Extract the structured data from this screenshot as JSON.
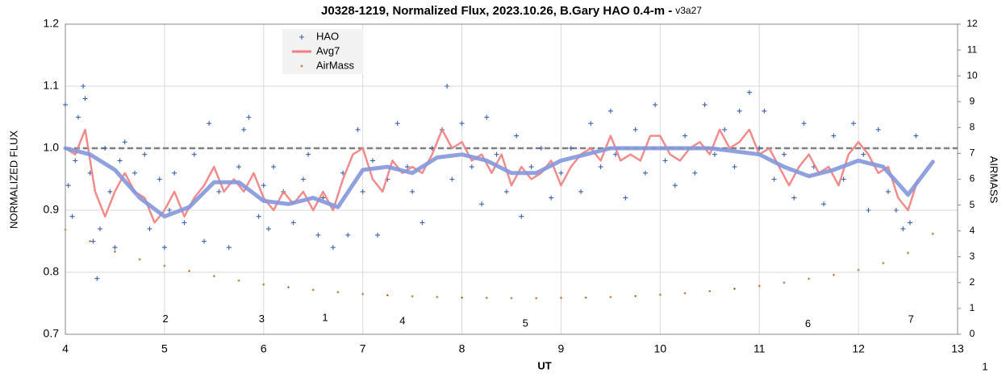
{
  "chart_data": {
    "type": "scatter",
    "title": "J0328-1219, Normalized Flux, 2023.10.26, B.Gary HAO 0.4-m -",
    "version": "v3a27",
    "xlabel": "UT",
    "ylabel": "NORMALIZED FLUX",
    "y2label": "AIRMASS",
    "page_label": "1",
    "xlim": [
      4,
      13
    ],
    "xticks": [
      4,
      5,
      6,
      7,
      8,
      9,
      10,
      11,
      12,
      13
    ],
    "ylim": [
      0.7,
      1.2
    ],
    "yticks": [
      0.7,
      0.8,
      0.9,
      {
        "value": 1,
        "label": "1.0"
      },
      1.1,
      1.2
    ],
    "y2lim": [
      0,
      12
    ],
    "y2ticks": [
      0,
      1,
      2,
      3,
      4,
      5,
      6,
      7,
      8,
      9,
      10,
      11,
      12
    ],
    "grid": true,
    "legend": "top-left",
    "reference_line": {
      "value": 1,
      "color": "#808080",
      "style": "dashed"
    },
    "trend": {
      "color": "#8497dd",
      "x": [
        4.0,
        4.25,
        4.5,
        4.75,
        5.0,
        5.25,
        5.5,
        5.75,
        6.0,
        6.25,
        6.5,
        6.75,
        7.0,
        7.25,
        7.5,
        7.75,
        8.0,
        8.25,
        8.5,
        8.75,
        9.0,
        9.25,
        9.5,
        10.0,
        10.5,
        10.75,
        11.0,
        11.25,
        11.5,
        11.75,
        12.0,
        12.25,
        12.5,
        12.75
      ],
      "values": [
        1.0,
        0.99,
        0.965,
        0.92,
        0.89,
        0.905,
        0.945,
        0.945,
        0.915,
        0.91,
        0.92,
        0.905,
        0.965,
        0.97,
        0.96,
        0.985,
        0.99,
        0.98,
        0.96,
        0.96,
        0.98,
        0.99,
        1.0,
        1.0,
        1.0,
        0.995,
        0.99,
        0.97,
        0.955,
        0.965,
        0.98,
        0.97,
        0.925,
        0.978
      ]
    },
    "annotations": [
      {
        "text": "2",
        "x": 5.01,
        "y": 0.724
      },
      {
        "text": "3",
        "x": 5.98,
        "y": 0.724
      },
      {
        "text": "1",
        "x": 6.62,
        "y": 0.726
      },
      {
        "text": "4",
        "x": 7.4,
        "y": 0.721
      },
      {
        "text": "5",
        "x": 8.64,
        "y": 0.717
      },
      {
        "text": "6",
        "x": 11.49,
        "y": 0.716
      },
      {
        "text": "7",
        "x": 12.53,
        "y": 0.723
      }
    ],
    "series": [
      {
        "name": "HAO",
        "color": "#4060b0",
        "marker": "plus",
        "x": [
          4.0,
          4.03,
          4.07,
          4.1,
          4.13,
          4.18,
          4.2,
          4.25,
          4.28,
          4.32,
          4.35,
          4.4,
          4.45,
          4.5,
          4.55,
          4.6,
          4.7,
          4.8,
          4.85,
          4.95,
          5.0,
          5.05,
          5.1,
          5.2,
          5.3,
          5.4,
          5.45,
          5.55,
          5.65,
          5.75,
          5.8,
          5.85,
          5.95,
          6.0,
          6.05,
          6.1,
          6.2,
          6.3,
          6.4,
          6.45,
          6.55,
          6.6,
          6.7,
          6.8,
          6.85,
          6.95,
          7.0,
          7.1,
          7.15,
          7.25,
          7.35,
          7.45,
          7.5,
          7.6,
          7.7,
          7.8,
          7.85,
          7.9,
          8.0,
          8.1,
          8.2,
          8.25,
          8.35,
          8.45,
          8.55,
          8.6,
          8.7,
          8.8,
          8.9,
          9.0,
          9.1,
          9.2,
          9.3,
          9.4,
          9.5,
          9.55,
          9.65,
          9.75,
          9.85,
          9.95,
          10.05,
          10.15,
          10.25,
          10.35,
          10.45,
          10.55,
          10.65,
          10.75,
          10.8,
          10.9,
          11.0,
          11.05,
          11.15,
          11.25,
          11.35,
          11.45,
          11.55,
          11.65,
          11.75,
          11.85,
          11.95,
          12.05,
          12.1,
          12.2,
          12.3,
          12.38,
          12.45,
          12.52,
          12.58
        ],
        "values": [
          1.07,
          0.94,
          0.89,
          0.98,
          1.05,
          1.1,
          1.08,
          0.96,
          0.85,
          0.79,
          0.87,
          1.0,
          0.93,
          0.84,
          0.98,
          1.01,
          0.96,
          0.99,
          0.87,
          0.95,
          0.84,
          0.9,
          0.96,
          0.88,
          0.99,
          0.85,
          1.04,
          0.93,
          0.84,
          0.97,
          1.03,
          1.05,
          0.89,
          0.94,
          0.87,
          0.97,
          0.93,
          0.88,
          0.95,
          0.99,
          0.86,
          0.92,
          0.84,
          0.96,
          0.86,
          1.03,
          0.93,
          0.98,
          0.86,
          0.95,
          1.04,
          0.97,
          0.93,
          0.88,
          1.0,
          1.03,
          1.1,
          0.95,
          1.04,
          0.97,
          0.91,
          1.05,
          0.99,
          0.93,
          1.02,
          0.89,
          0.97,
          1.0,
          0.92,
          0.96,
          1.0,
          0.93,
          1.04,
          0.97,
          1.06,
          0.99,
          0.92,
          1.03,
          0.96,
          1.07,
          0.98,
          0.94,
          1.02,
          0.96,
          1.07,
          0.99,
          1.03,
          0.97,
          1.06,
          1.09,
          1.0,
          1.06,
          0.95,
          0.99,
          0.92,
          1.04,
          0.97,
          0.91,
          1.02,
          0.95,
          1.04,
          0.99,
          0.9,
          1.03,
          0.93,
          0.9,
          0.87,
          0.88,
          1.02
        ]
      },
      {
        "name": "Avg7",
        "color": "#f08080",
        "marker": "line",
        "x": [
          4.0,
          4.1,
          4.2,
          4.3,
          4.4,
          4.5,
          4.6,
          4.7,
          4.8,
          4.9,
          5.0,
          5.1,
          5.2,
          5.3,
          5.4,
          5.5,
          5.6,
          5.7,
          5.8,
          5.9,
          6.0,
          6.1,
          6.2,
          6.3,
          6.4,
          6.5,
          6.6,
          6.7,
          6.8,
          6.9,
          7.0,
          7.1,
          7.2,
          7.3,
          7.4,
          7.5,
          7.6,
          7.7,
          7.8,
          7.9,
          8.0,
          8.1,
          8.2,
          8.3,
          8.4,
          8.5,
          8.6,
          8.7,
          8.8,
          8.9,
          9.0,
          9.1,
          9.2,
          9.3,
          9.4,
          9.5,
          9.6,
          9.7,
          9.8,
          9.9,
          10.0,
          10.1,
          10.2,
          10.3,
          10.4,
          10.5,
          10.6,
          10.7,
          10.8,
          10.9,
          11.0,
          11.1,
          11.2,
          11.3,
          11.4,
          11.5,
          11.6,
          11.7,
          11.8,
          11.9,
          12.0,
          12.1,
          12.2,
          12.3,
          12.4,
          12.5,
          12.6
        ],
        "values": [
          1.0,
          0.99,
          1.03,
          0.93,
          0.89,
          0.93,
          0.96,
          0.93,
          0.92,
          0.88,
          0.9,
          0.93,
          0.89,
          0.92,
          0.94,
          0.97,
          0.93,
          0.95,
          0.93,
          0.96,
          0.92,
          0.9,
          0.93,
          0.91,
          0.93,
          0.9,
          0.93,
          0.9,
          0.95,
          0.99,
          1.0,
          0.95,
          0.93,
          0.98,
          0.96,
          0.97,
          0.96,
          0.99,
          1.03,
          1.0,
          1.01,
          0.98,
          0.99,
          0.96,
          0.99,
          0.94,
          0.97,
          0.95,
          0.96,
          0.98,
          0.94,
          0.97,
          0.99,
          1.0,
          0.98,
          1.02,
          0.98,
          0.99,
          0.98,
          1.02,
          1.02,
          0.99,
          0.98,
          1.0,
          1.01,
          0.99,
          1.03,
          1.0,
          1.01,
          1.03,
          0.99,
          1.0,
          0.97,
          0.94,
          0.97,
          0.99,
          0.96,
          0.97,
          0.94,
          0.99,
          1.01,
          0.99,
          0.96,
          0.97,
          0.92,
          0.9,
          0.95
        ]
      },
      {
        "name": "AirMass",
        "color": "#b07030",
        "marker": "dot",
        "axis": "y2",
        "x": [
          4.0,
          4.25,
          4.5,
          4.75,
          5.0,
          5.25,
          5.5,
          5.75,
          6.0,
          6.25,
          6.5,
          6.75,
          7.0,
          7.25,
          7.5,
          7.75,
          8.0,
          8.25,
          8.5,
          8.75,
          9.0,
          9.25,
          9.5,
          9.75,
          10.0,
          10.25,
          10.5,
          10.75,
          11.0,
          11.25,
          11.5,
          11.75,
          12.0,
          12.25,
          12.5,
          12.75
        ],
        "values": [
          4.05,
          3.6,
          3.2,
          2.9,
          2.65,
          2.45,
          2.25,
          2.08,
          1.93,
          1.82,
          1.72,
          1.63,
          1.56,
          1.51,
          1.47,
          1.44,
          1.42,
          1.41,
          1.4,
          1.4,
          1.41,
          1.42,
          1.44,
          1.48,
          1.53,
          1.59,
          1.67,
          1.76,
          1.87,
          2.0,
          2.15,
          2.3,
          2.49,
          2.75,
          3.15,
          3.89
        ]
      }
    ]
  }
}
